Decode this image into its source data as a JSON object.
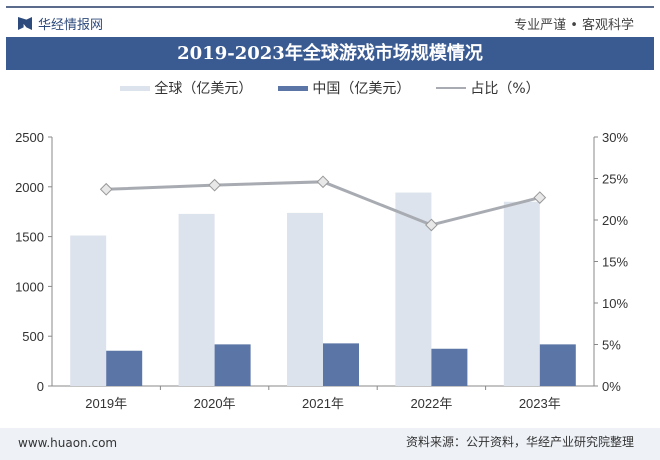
{
  "header": {
    "brand": "华经情报网",
    "slogan": "专业严谨 • 客观科学",
    "title": "2019-2023年全球游戏市场规模情况"
  },
  "footer": {
    "url": "www.huaon.com",
    "source": "资料来源：公开资料，华经产业研究院整理"
  },
  "colors": {
    "global": "#dde3ec",
    "china": "#5b76a6",
    "share": "#a8acb2",
    "title_bg": "#3a5b92"
  },
  "chart_data": {
    "type": "bar+line",
    "title": "2019-2023年全球游戏市场规模情况",
    "categories": [
      "2019年",
      "2020年",
      "2021年",
      "2022年",
      "2023年"
    ],
    "series": [
      {
        "name": "全球（亿美元）",
        "type": "bar",
        "axis": "left",
        "values": [
          1511,
          1728,
          1738,
          1942,
          1850
        ]
      },
      {
        "name": "中国（亿美元）",
        "type": "bar",
        "axis": "left",
        "values": [
          354,
          418,
          428,
          374,
          418
        ]
      },
      {
        "name": "占比（%）",
        "type": "line",
        "axis": "right",
        "values": [
          23.7,
          24.2,
          24.6,
          19.4,
          22.7
        ]
      }
    ],
    "y_left": {
      "min": 0,
      "max": 2500,
      "ticks": [
        "0",
        "500",
        "1000",
        "1500",
        "2000",
        "2500"
      ]
    },
    "y_right": {
      "min": 0,
      "max": 30,
      "ticks": [
        "0%",
        "5%",
        "10%",
        "15%",
        "20%",
        "25%",
        "30%"
      ]
    },
    "legend": "top",
    "grid": false
  }
}
